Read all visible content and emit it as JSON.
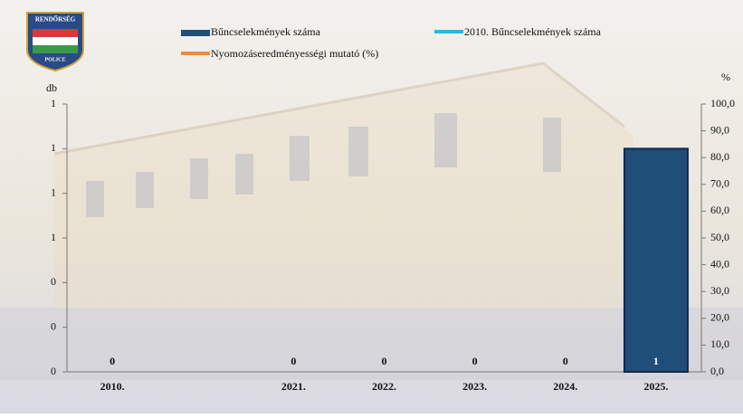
{
  "logo": {
    "top": "RENDŐRSÉG",
    "bottom": "POLICE"
  },
  "chart_data": {
    "type": "bar",
    "ylabel": "db",
    "y2label": "%",
    "categories": [
      "2010.",
      null,
      "2021.",
      "2022.",
      "2023.",
      "2024.",
      "2025."
    ],
    "series": [
      {
        "name": "Bűncselekmények száma",
        "color": "#1f4e79",
        "values": [
          0,
          null,
          0,
          0,
          0,
          0,
          1
        ]
      },
      {
        "name": "2010. Bűncselekmények száma",
        "color": "#2bb5e8",
        "values": [
          null,
          null,
          null,
          null,
          null,
          null,
          null
        ]
      },
      {
        "name": "Nyomozáseredményességi mutató (%)",
        "color": "#f08a3c",
        "axis": "y2",
        "values": [
          null,
          null,
          null,
          null,
          null,
          null,
          null
        ]
      }
    ],
    "ylim": [
      0,
      1.2
    ],
    "yticks": [
      0,
      {
        "value": 0.2,
        "label": "0"
      },
      {
        "value": 0.4,
        "label": "0"
      },
      {
        "value": 0.6,
        "label": "1"
      },
      {
        "value": 0.8,
        "label": "1"
      },
      1,
      {
        "value": 1.2,
        "label": "1"
      }
    ],
    "y2lim": [
      0,
      100
    ],
    "y2ticks": [
      {
        "value": 0,
        "label": "0,0"
      },
      {
        "value": 10,
        "label": "10,0"
      },
      {
        "value": 20,
        "label": "20,0"
      },
      {
        "value": 30,
        "label": "30,0"
      },
      {
        "value": 40,
        "label": "40,0"
      },
      {
        "value": 50,
        "label": "50,0"
      },
      {
        "value": 60,
        "label": "60,0"
      },
      {
        "value": 70,
        "label": "70,0"
      },
      {
        "value": 80,
        "label": "80,0"
      },
      {
        "value": 90,
        "label": "90,0"
      },
      {
        "value": 100,
        "label": "100,0"
      }
    ]
  }
}
